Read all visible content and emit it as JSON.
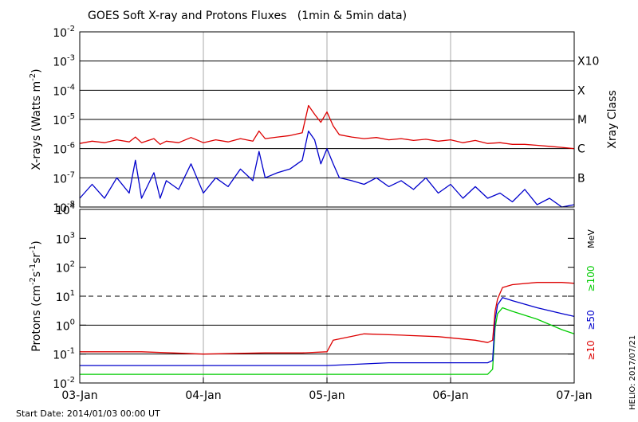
{
  "chart_data": [
    {
      "type": "line",
      "title": "GOES Soft X-ray and Protons Fluxes   (1min & 5min data)",
      "ylabel_parts": {
        "pre": "X-rays (Watts m",
        "sup": "-2",
        "post": ")"
      },
      "y_scale": "log",
      "ylim": [
        1e-08,
        0.01
      ],
      "yticks": [
        {
          "base": "10",
          "exp": "-8",
          "value": 1e-08
        },
        {
          "base": "10",
          "exp": "-7",
          "value": 1e-07
        },
        {
          "base": "10",
          "exp": "-6",
          "value": 1e-06
        },
        {
          "base": "10",
          "exp": "-5",
          "value": 1e-05
        },
        {
          "base": "10",
          "exp": "-4",
          "value": 0.0001
        },
        {
          "base": "10",
          "exp": "-3",
          "value": 0.001
        },
        {
          "base": "10",
          "exp": "-2",
          "value": 0.01
        }
      ],
      "right_label": "Xray Class",
      "classes": [
        {
          "label": "X10",
          "value": 0.001
        },
        {
          "label": "X",
          "value": 0.0001
        },
        {
          "label": "M",
          "value": 1e-05
        },
        {
          "label": "C",
          "value": 1e-06
        },
        {
          "label": "B",
          "value": 1e-07
        }
      ],
      "series": [
        {
          "color": "#dd0000",
          "x": [
            0,
            0.1,
            0.2,
            0.3,
            0.4,
            0.45,
            0.5,
            0.6,
            0.65,
            0.7,
            0.8,
            0.9,
            1.0,
            1.1,
            1.2,
            1.3,
            1.4,
            1.45,
            1.5,
            1.6,
            1.7,
            1.8,
            1.85,
            1.9,
            1.95,
            2.0,
            2.05,
            2.1,
            2.2,
            2.3,
            2.4,
            2.5,
            2.6,
            2.7,
            2.8,
            2.9,
            3.0,
            3.1,
            3.2,
            3.3,
            3.4,
            3.5,
            3.6,
            3.7,
            3.8,
            3.9,
            4.0
          ],
          "values": [
            1.5e-06,
            1.8e-06,
            1.6e-06,
            2e-06,
            1.7e-06,
            2.5e-06,
            1.6e-06,
            2.2e-06,
            1.4e-06,
            1.8e-06,
            1.6e-06,
            2.4e-06,
            1.6e-06,
            2e-06,
            1.7e-06,
            2.2e-06,
            1.8e-06,
            4e-06,
            2.2e-06,
            2.5e-06,
            2.8e-06,
            3.5e-06,
            3e-05,
            1.5e-05,
            8e-06,
            1.8e-05,
            6e-06,
            3e-06,
            2.5e-06,
            2.2e-06,
            2.4e-06,
            2e-06,
            2.2e-06,
            1.9e-06,
            2.1e-06,
            1.8e-06,
            2e-06,
            1.6e-06,
            1.9e-06,
            1.5e-06,
            1.6e-06,
            1.4e-06,
            1.4e-06,
            1.3e-06,
            1.2e-06,
            1.1e-06,
            1e-06
          ]
        },
        {
          "color": "#0000cc",
          "x": [
            0,
            0.1,
            0.2,
            0.3,
            0.4,
            0.45,
            0.5,
            0.6,
            0.65,
            0.7,
            0.8,
            0.9,
            1.0,
            1.1,
            1.2,
            1.3,
            1.4,
            1.45,
            1.5,
            1.6,
            1.7,
            1.8,
            1.85,
            1.9,
            1.95,
            2.0,
            2.05,
            2.1,
            2.2,
            2.3,
            2.4,
            2.5,
            2.6,
            2.7,
            2.8,
            2.9,
            3.0,
            3.1,
            3.2,
            3.3,
            3.4,
            3.5,
            3.6,
            3.7,
            3.8,
            3.9,
            4.0
          ],
          "values": [
            2e-08,
            6e-08,
            2e-08,
            1e-07,
            3e-08,
            4e-07,
            2e-08,
            1.5e-07,
            2e-08,
            8e-08,
            4e-08,
            3e-07,
            3e-08,
            1e-07,
            5e-08,
            2e-07,
            8e-08,
            8e-07,
            1e-07,
            1.5e-07,
            2e-07,
            4e-07,
            4e-06,
            2e-06,
            3e-07,
            1e-06,
            3e-07,
            1e-07,
            8e-08,
            6e-08,
            1e-07,
            5e-08,
            8e-08,
            4e-08,
            1e-07,
            3e-08,
            6e-08,
            2e-08,
            5e-08,
            2e-08,
            3e-08,
            1.5e-08,
            4e-08,
            1.2e-08,
            2e-08,
            1e-08,
            1.2e-08
          ]
        }
      ]
    },
    {
      "type": "line",
      "ylabel_parts": {
        "pre": "Protons (cm",
        "sup1": "-2",
        "mid1": "s",
        "sup2": "-1",
        "mid2": "sr",
        "sup3": "-1",
        "post": ")"
      },
      "y_scale": "log",
      "ylim": [
        0.01,
        10000
      ],
      "yticks": [
        {
          "base": "10",
          "exp": "-2",
          "value": 0.01
        },
        {
          "base": "10",
          "exp": "-1",
          "value": 0.1
        },
        {
          "base": "10",
          "exp": "0",
          "value": 1
        },
        {
          "base": "10",
          "exp": "1",
          "value": 10
        },
        {
          "base": "10",
          "exp": "2",
          "value": 100
        },
        {
          "base": "10",
          "exp": "3",
          "value": 1000
        },
        {
          "base": "10",
          "exp": "4",
          "value": 10000
        }
      ],
      "threshold": 10,
      "unit": "MeV",
      "series": [
        {
          "name": "≥10",
          "color": "#dd0000",
          "x": [
            0,
            0.5,
            1.0,
            1.5,
            1.8,
            2.0,
            2.05,
            2.3,
            2.6,
            2.9,
            3.2,
            3.3,
            3.34,
            3.36,
            3.38,
            3.42,
            3.5,
            3.7,
            3.9,
            4.0
          ],
          "values": [
            0.12,
            0.12,
            0.1,
            0.11,
            0.11,
            0.12,
            0.3,
            0.5,
            0.45,
            0.4,
            0.3,
            0.25,
            0.3,
            3,
            8,
            20,
            25,
            30,
            30,
            28
          ]
        },
        {
          "name": "≥50",
          "color": "#0000cc",
          "x": [
            0,
            0.5,
            1.0,
            1.5,
            2.0,
            2.5,
            3.0,
            3.3,
            3.34,
            3.36,
            3.38,
            3.42,
            3.5,
            3.7,
            3.9,
            4.0
          ],
          "values": [
            0.04,
            0.04,
            0.04,
            0.04,
            0.04,
            0.05,
            0.05,
            0.05,
            0.06,
            1.5,
            5,
            9,
            7,
            4,
            2.5,
            2.0
          ]
        },
        {
          "name": "≥100",
          "color": "#00cc00",
          "x": [
            0,
            0.5,
            1.0,
            1.5,
            2.0,
            2.5,
            3.0,
            3.3,
            3.34,
            3.36,
            3.38,
            3.42,
            3.5,
            3.7,
            3.9,
            4.0
          ],
          "values": [
            0.02,
            0.02,
            0.02,
            0.02,
            0.02,
            0.02,
            0.02,
            0.02,
            0.03,
            0.8,
            2.5,
            4,
            3,
            1.6,
            0.7,
            0.5
          ]
        }
      ]
    }
  ],
  "xaxis": {
    "ticks": [
      {
        "label": "03-Jan",
        "value": 0
      },
      {
        "label": "04-Jan",
        "value": 1
      },
      {
        "label": "05-Jan",
        "value": 2
      },
      {
        "label": "06-Jan",
        "value": 3
      },
      {
        "label": "07-Jan",
        "value": 4
      }
    ],
    "range": [
      0,
      4
    ]
  },
  "start_date": "Start Date: 2014/01/03 00:00 UT",
  "credit": "HELIO: 2017/07/21"
}
